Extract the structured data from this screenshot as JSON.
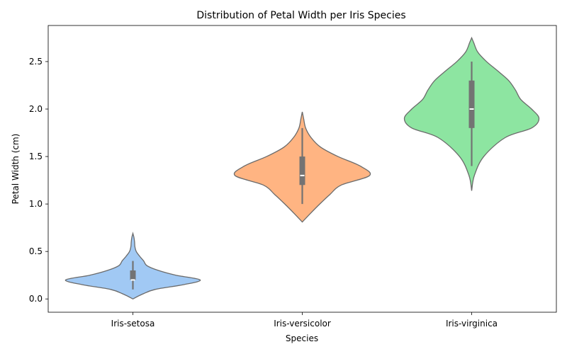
{
  "chart_data": {
    "type": "violin",
    "title": "Distribution of Petal Width per Iris Species",
    "xlabel": "Species",
    "ylabel": "Petal Width (cm)",
    "ylim": [
      -0.14,
      2.88
    ],
    "yticks": [
      0.0,
      0.5,
      1.0,
      1.5,
      2.0,
      2.5
    ],
    "ytick_labels": [
      "0.0",
      "0.5",
      "1.0",
      "1.5",
      "2.0",
      "2.5"
    ],
    "grid": false,
    "categories": [
      "Iris-setosa",
      "Iris-versicolor",
      "Iris-virginica"
    ],
    "series": [
      {
        "category": "Iris-setosa",
        "color": "#a1c9f4",
        "min": 0.1,
        "q1": 0.2,
        "median": 0.2,
        "q3": 0.3,
        "max": 0.4,
        "kde_range": [
          0.0,
          0.69
        ],
        "density": [
          [
            0.0,
            0.0
          ],
          [
            0.05,
            0.14
          ],
          [
            0.1,
            0.33
          ],
          [
            0.15,
            0.75
          ],
          [
            0.2,
            1.0
          ],
          [
            0.25,
            0.64
          ],
          [
            0.3,
            0.38
          ],
          [
            0.35,
            0.21
          ],
          [
            0.4,
            0.16
          ],
          [
            0.45,
            0.1
          ],
          [
            0.5,
            0.05
          ],
          [
            0.55,
            0.03
          ],
          [
            0.6,
            0.025
          ],
          [
            0.65,
            0.015
          ],
          [
            0.69,
            0.0
          ]
        ]
      },
      {
        "category": "Iris-versicolor",
        "color": "#ffb482",
        "min": 1.0,
        "q1": 1.2,
        "median": 1.3,
        "q3": 1.5,
        "max": 1.8,
        "kde_range": [
          0.81,
          1.97
        ],
        "density": [
          [
            0.81,
            0.0
          ],
          [
            0.9,
            0.12
          ],
          [
            1.0,
            0.26
          ],
          [
            1.1,
            0.41
          ],
          [
            1.2,
            0.58
          ],
          [
            1.3,
            1.0
          ],
          [
            1.4,
            0.86
          ],
          [
            1.5,
            0.53
          ],
          [
            1.6,
            0.27
          ],
          [
            1.7,
            0.13
          ],
          [
            1.8,
            0.05
          ],
          [
            1.9,
            0.02
          ],
          [
            1.97,
            0.0
          ]
        ]
      },
      {
        "category": "Iris-virginica",
        "color": "#8de5a1",
        "min": 1.4,
        "q1": 1.8,
        "median": 2.0,
        "q3": 2.3,
        "max": 2.5,
        "kde_range": [
          1.14,
          2.75
        ],
        "density": [
          [
            1.14,
            0.0
          ],
          [
            1.3,
            0.04
          ],
          [
            1.5,
            0.18
          ],
          [
            1.7,
            0.5
          ],
          [
            1.8,
            0.89
          ],
          [
            1.9,
            1.0
          ],
          [
            2.0,
            0.89
          ],
          [
            2.1,
            0.73
          ],
          [
            2.2,
            0.65
          ],
          [
            2.3,
            0.55
          ],
          [
            2.4,
            0.39
          ],
          [
            2.5,
            0.22
          ],
          [
            2.6,
            0.09
          ],
          [
            2.7,
            0.03
          ],
          [
            2.75,
            0.0
          ]
        ]
      }
    ],
    "violin_outline_color": "#6b6b6b",
    "box_color": "#737373",
    "median_color": "#ffffff"
  }
}
